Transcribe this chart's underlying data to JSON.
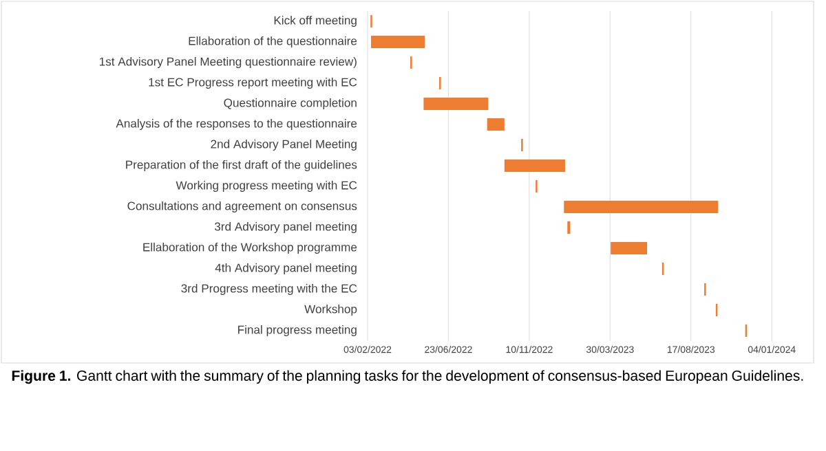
{
  "chart_data": {
    "type": "bar",
    "orientation": "horizontal",
    "categories": [
      "Kick off meeting",
      "Ellaboration of the questionnaire",
      "1st Advisory Panel Meeting questionnaire review)",
      "1st EC Progress report meeting with EC",
      "Questionnaire completion",
      "Analysis of the responses to the questionnaire",
      "2nd Advisory Panel Meeting",
      "Preparation of the first draft of the guidelines",
      "Working progress meeting with EC",
      "Consultations and agreement on consensus",
      "3rd Advisory panel meeting",
      "Ellaboration of the Workshop programme",
      "4th Advisory panel meeting",
      "3rd Progress meeting with the EC",
      "Workshop",
      "Final progress meeting"
    ],
    "base": [
      19031,
      19032,
      19100,
      19150,
      19123,
      19233,
      19292,
      19263,
      19317,
      19366,
      19372,
      19447,
      19536,
      19609,
      19629,
      19680
    ],
    "values": [
      3,
      93,
      3,
      3,
      112,
      30,
      3,
      105,
      3,
      267,
      5,
      63,
      3,
      3,
      3,
      3
    ],
    "color": "#ed7d31",
    "xlim": [
      "2022-02-03",
      "2024-03-14"
    ],
    "xticks": [
      {
        "value": "2022-02-03",
        "label": "03/02/2022"
      },
      {
        "value": "2022-06-23",
        "label": "23/06/2022"
      },
      {
        "value": "2022-11-10",
        "label": "10/11/2022"
      },
      {
        "value": "2023-03-30",
        "label": "30/03/2023"
      },
      {
        "value": "2023-08-17",
        "label": "17/08/2023"
      },
      {
        "value": "2024-01-04",
        "label": "04/01/2024"
      }
    ],
    "grid": "x",
    "annotations": [
      "**Figure 1.** Gantt chart with the summary of the planning tasks for the development of consensus-based European Guidelines."
    ]
  }
}
